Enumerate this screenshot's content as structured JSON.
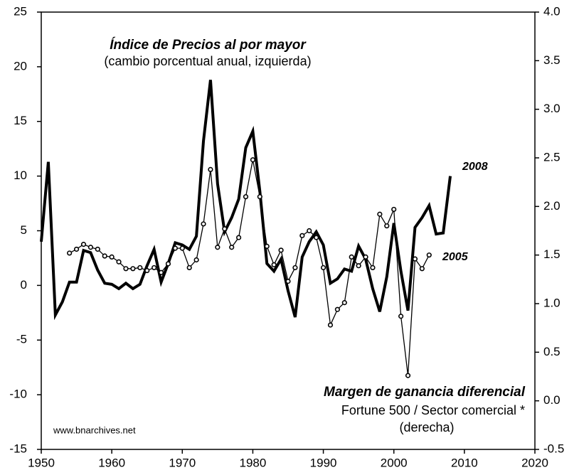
{
  "chart_data": {
    "type": "line",
    "annotations": [
      "Índice de Precios al por mayor",
      "(cambio porcentual anual, izquierda)",
      "Margen de ganancia diferencial",
      "Fortune 500 / Sector comercial *",
      "(derecha)",
      "2008",
      "2005",
      "www.bnarchives.net"
    ],
    "xlim": [
      1950,
      2020
    ],
    "xticks": [
      1950,
      1960,
      1970,
      1980,
      1990,
      2000,
      2010,
      2020
    ],
    "ylim": [
      -15,
      25
    ],
    "yticks": [
      -15,
      -10,
      -5,
      0,
      5,
      10,
      15,
      20,
      25
    ],
    "y2lim": [
      -0.5,
      4.0
    ],
    "y2ticks": [
      -0.5,
      0.0,
      0.5,
      1.0,
      1.5,
      2.0,
      2.5,
      3.0,
      3.5,
      4.0
    ],
    "series": [
      {
        "color": "#000000",
        "x": [
          1950,
          1951,
          1952,
          1953,
          1954,
          1955,
          1956,
          1957,
          1958,
          1959,
          1960,
          1961,
          1962,
          1963,
          1964,
          1965,
          1966,
          1967,
          1968,
          1969,
          1970,
          1971,
          1972,
          1973,
          1974,
          1975,
          1976,
          1977,
          1978,
          1979,
          1980,
          1981,
          1982,
          1983,
          1984,
          1985,
          1986,
          1987,
          1988,
          1989,
          1990,
          1991,
          1992,
          1993,
          1994,
          1995,
          1996,
          1997,
          1998,
          1999,
          2000,
          2001,
          2002,
          2003,
          2004,
          2005,
          2006,
          2007,
          2008
        ],
        "values": [
          4.0,
          11.3,
          -2.7,
          -1.5,
          0.3,
          0.3,
          3.2,
          3.0,
          1.4,
          0.2,
          0.1,
          -0.3,
          0.2,
          -0.3,
          0.1,
          1.8,
          3.3,
          0.3,
          2.0,
          3.9,
          3.7,
          3.3,
          4.5,
          13.2,
          18.8,
          9.3,
          4.9,
          6.2,
          7.9,
          12.6,
          14.1,
          8.6,
          2.0,
          1.3,
          2.4,
          -0.5,
          -2.9,
          2.6,
          4.0,
          4.9,
          3.7,
          0.2,
          0.6,
          1.5,
          1.3,
          3.6,
          2.4,
          -0.3,
          -2.4,
          0.8,
          5.7,
          1.3,
          -2.3,
          5.3,
          6.2,
          7.3,
          4.7,
          4.8,
          10.0
        ]
      },
      {
        "color": "#000000",
        "axis": "y2",
        "x": [
          1954,
          1955,
          1956,
          1957,
          1958,
          1959,
          1960,
          1961,
          1962,
          1963,
          1964,
          1965,
          1966,
          1967,
          1968,
          1969,
          1970,
          1971,
          1972,
          1973,
          1974,
          1975,
          1976,
          1977,
          1978,
          1979,
          1980,
          1981,
          1982,
          1983,
          1984,
          1985,
          1986,
          1987,
          1988,
          1989,
          1990,
          1991,
          1992,
          1993,
          1994,
          1995,
          1996,
          1997,
          1998,
          1999,
          2000,
          2001,
          2002,
          2003,
          2004,
          2005
        ],
        "values": [
          1.52,
          1.56,
          1.61,
          1.58,
          1.56,
          1.49,
          1.48,
          1.43,
          1.36,
          1.36,
          1.37,
          1.34,
          1.37,
          1.32,
          1.41,
          1.57,
          1.57,
          1.37,
          1.45,
          1.82,
          2.38,
          1.58,
          1.77,
          1.58,
          1.68,
          2.1,
          2.48,
          2.1,
          1.59,
          1.4,
          1.55,
          1.23,
          1.37,
          1.7,
          1.75,
          1.68,
          1.37,
          0.78,
          0.94,
          1.01,
          1.48,
          1.39,
          1.48,
          1.37,
          1.92,
          1.8,
          1.97,
          0.87,
          0.26,
          1.46,
          1.36,
          1.5
        ]
      }
    ]
  }
}
